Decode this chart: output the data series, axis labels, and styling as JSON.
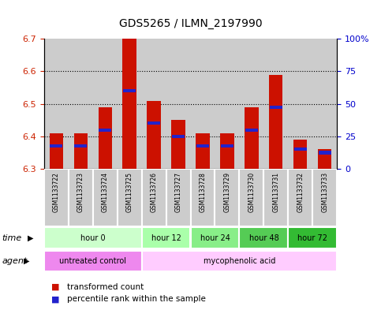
{
  "title": "GDS5265 / ILMN_2197990",
  "samples": [
    "GSM1133722",
    "GSM1133723",
    "GSM1133724",
    "GSM1133725",
    "GSM1133726",
    "GSM1133727",
    "GSM1133728",
    "GSM1133729",
    "GSM1133730",
    "GSM1133731",
    "GSM1133732",
    "GSM1133733"
  ],
  "red_values": [
    6.41,
    6.41,
    6.49,
    6.7,
    6.51,
    6.45,
    6.41,
    6.41,
    6.49,
    6.59,
    6.39,
    6.36
  ],
  "blue_values": [
    6.37,
    6.37,
    6.42,
    6.54,
    6.44,
    6.4,
    6.37,
    6.37,
    6.42,
    6.49,
    6.36,
    6.35
  ],
  "y_min": 6.3,
  "y_max": 6.7,
  "y_ticks_red": [
    6.3,
    6.4,
    6.5,
    6.6,
    6.7
  ],
  "y_ticks_blue": [
    0,
    25,
    50,
    75,
    100
  ],
  "y_ticks_blue_labels": [
    "0",
    "25",
    "50",
    "75",
    "100%"
  ],
  "dotted_lines": [
    6.4,
    6.5,
    6.6
  ],
  "bar_color": "#cc1100",
  "blue_color": "#2222cc",
  "bar_bottom": 6.3,
  "time_groups": [
    {
      "label": "hour 0",
      "start": 0,
      "end": 4,
      "color": "#ccffcc"
    },
    {
      "label": "hour 12",
      "start": 4,
      "end": 6,
      "color": "#aaffaa"
    },
    {
      "label": "hour 24",
      "start": 6,
      "end": 8,
      "color": "#88ee88"
    },
    {
      "label": "hour 48",
      "start": 8,
      "end": 10,
      "color": "#55cc55"
    },
    {
      "label": "hour 72",
      "start": 10,
      "end": 12,
      "color": "#33bb33"
    }
  ],
  "agent_groups": [
    {
      "label": "untreated control",
      "start": 0,
      "end": 4,
      "color": "#ee88ee"
    },
    {
      "label": "mycophenolic acid",
      "start": 4,
      "end": 12,
      "color": "#ffccff"
    }
  ],
  "legend_red": "transformed count",
  "legend_blue": "percentile rank within the sample",
  "xlabel_time": "time",
  "xlabel_agent": "agent",
  "sample_bg_color": "#cccccc",
  "bar_width": 0.55
}
